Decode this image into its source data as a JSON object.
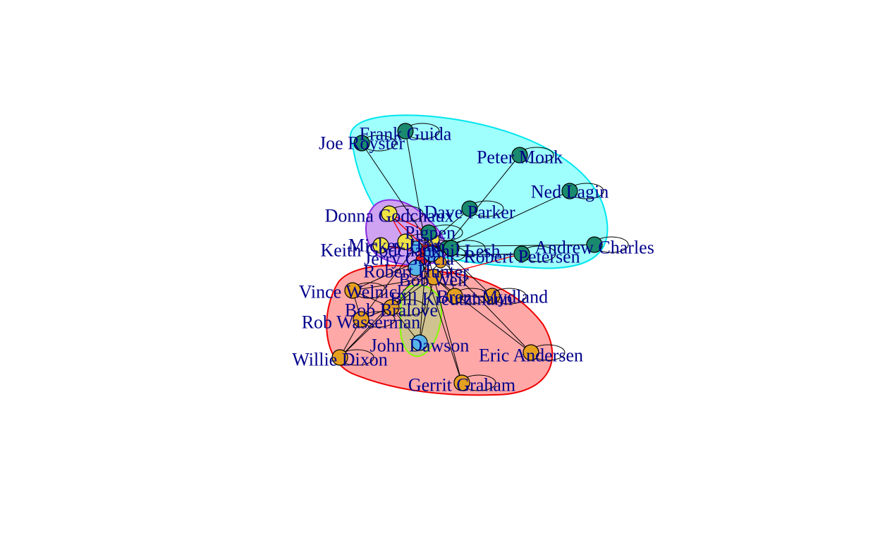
{
  "colors": {
    "background": "#ffffff",
    "node_stroke": "#000000",
    "edge": "#000000",
    "cross_edge": "#ff0000",
    "label": "#00008b",
    "group_a_fill": "#9ffffc",
    "group_a_border": "#00e5ee",
    "group_b_fill": "#ffa8a8",
    "group_b_border": "#ee0000",
    "group_c_fill": "#cfa2f2",
    "group_c_border": "#8a2be2",
    "group_d_fill": "#c8c88c",
    "group_d_border": "#7fff00",
    "node_green": "#1a8a6e",
    "node_orange": "#e6a020",
    "node_yellow": "#f0e442",
    "node_blue": "#56b4e9",
    "node_red": "#dd2020"
  },
  "labels": [
    "Frank Guida",
    "Joe Royster",
    "Peter Monk",
    "Ned Lagin",
    "Dave Parker",
    "Donna Godchaux",
    "Andrew Charles",
    "Keith Godchaux",
    "Robert Petersen",
    "Robert Hunter",
    "Vince Welnick",
    "Brent Mydland",
    "Bob Bralove",
    "Rob Wasserman",
    "John Dawson",
    "Eric Andersen",
    "Willie Dixon",
    "Gerrit Graham",
    "Mickey Hart",
    "Jerry Garcia",
    "Phil Lesh",
    "Bob Weir",
    "Pigpen",
    "Bill Kreutzmann"
  ]
}
